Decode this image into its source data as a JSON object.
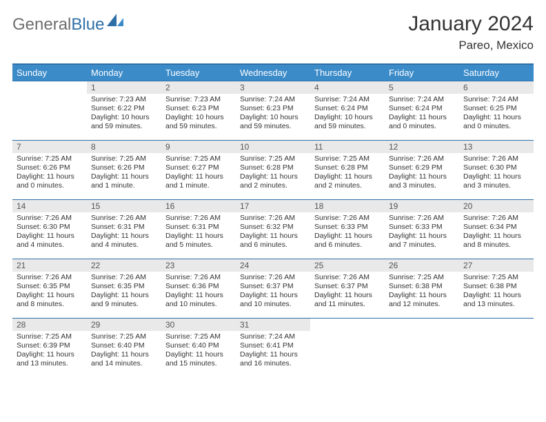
{
  "logo": {
    "general": "General",
    "blue": "Blue"
  },
  "header": {
    "month_title": "January 2024",
    "location": "Pareo, Mexico"
  },
  "colors": {
    "accent": "#3b8bc9",
    "accent_dark": "#2f6fa7",
    "daynum_bg": "#e9e9e9",
    "text": "#333333",
    "logo_grey": "#6e6e6e"
  },
  "weekdays": [
    "Sunday",
    "Monday",
    "Tuesday",
    "Wednesday",
    "Thursday",
    "Friday",
    "Saturday"
  ],
  "weeks": [
    [
      null,
      {
        "n": "1",
        "sunrise": "Sunrise: 7:23 AM",
        "sunset": "Sunset: 6:22 PM",
        "daylight": "Daylight: 10 hours and 59 minutes."
      },
      {
        "n": "2",
        "sunrise": "Sunrise: 7:23 AM",
        "sunset": "Sunset: 6:23 PM",
        "daylight": "Daylight: 10 hours and 59 minutes."
      },
      {
        "n": "3",
        "sunrise": "Sunrise: 7:24 AM",
        "sunset": "Sunset: 6:23 PM",
        "daylight": "Daylight: 10 hours and 59 minutes."
      },
      {
        "n": "4",
        "sunrise": "Sunrise: 7:24 AM",
        "sunset": "Sunset: 6:24 PM",
        "daylight": "Daylight: 10 hours and 59 minutes."
      },
      {
        "n": "5",
        "sunrise": "Sunrise: 7:24 AM",
        "sunset": "Sunset: 6:24 PM",
        "daylight": "Daylight: 11 hours and 0 minutes."
      },
      {
        "n": "6",
        "sunrise": "Sunrise: 7:24 AM",
        "sunset": "Sunset: 6:25 PM",
        "daylight": "Daylight: 11 hours and 0 minutes."
      }
    ],
    [
      {
        "n": "7",
        "sunrise": "Sunrise: 7:25 AM",
        "sunset": "Sunset: 6:26 PM",
        "daylight": "Daylight: 11 hours and 0 minutes."
      },
      {
        "n": "8",
        "sunrise": "Sunrise: 7:25 AM",
        "sunset": "Sunset: 6:26 PM",
        "daylight": "Daylight: 11 hours and 1 minute."
      },
      {
        "n": "9",
        "sunrise": "Sunrise: 7:25 AM",
        "sunset": "Sunset: 6:27 PM",
        "daylight": "Daylight: 11 hours and 1 minute."
      },
      {
        "n": "10",
        "sunrise": "Sunrise: 7:25 AM",
        "sunset": "Sunset: 6:28 PM",
        "daylight": "Daylight: 11 hours and 2 minutes."
      },
      {
        "n": "11",
        "sunrise": "Sunrise: 7:25 AM",
        "sunset": "Sunset: 6:28 PM",
        "daylight": "Daylight: 11 hours and 2 minutes."
      },
      {
        "n": "12",
        "sunrise": "Sunrise: 7:26 AM",
        "sunset": "Sunset: 6:29 PM",
        "daylight": "Daylight: 11 hours and 3 minutes."
      },
      {
        "n": "13",
        "sunrise": "Sunrise: 7:26 AM",
        "sunset": "Sunset: 6:30 PM",
        "daylight": "Daylight: 11 hours and 3 minutes."
      }
    ],
    [
      {
        "n": "14",
        "sunrise": "Sunrise: 7:26 AM",
        "sunset": "Sunset: 6:30 PM",
        "daylight": "Daylight: 11 hours and 4 minutes."
      },
      {
        "n": "15",
        "sunrise": "Sunrise: 7:26 AM",
        "sunset": "Sunset: 6:31 PM",
        "daylight": "Daylight: 11 hours and 4 minutes."
      },
      {
        "n": "16",
        "sunrise": "Sunrise: 7:26 AM",
        "sunset": "Sunset: 6:31 PM",
        "daylight": "Daylight: 11 hours and 5 minutes."
      },
      {
        "n": "17",
        "sunrise": "Sunrise: 7:26 AM",
        "sunset": "Sunset: 6:32 PM",
        "daylight": "Daylight: 11 hours and 6 minutes."
      },
      {
        "n": "18",
        "sunrise": "Sunrise: 7:26 AM",
        "sunset": "Sunset: 6:33 PM",
        "daylight": "Daylight: 11 hours and 6 minutes."
      },
      {
        "n": "19",
        "sunrise": "Sunrise: 7:26 AM",
        "sunset": "Sunset: 6:33 PM",
        "daylight": "Daylight: 11 hours and 7 minutes."
      },
      {
        "n": "20",
        "sunrise": "Sunrise: 7:26 AM",
        "sunset": "Sunset: 6:34 PM",
        "daylight": "Daylight: 11 hours and 8 minutes."
      }
    ],
    [
      {
        "n": "21",
        "sunrise": "Sunrise: 7:26 AM",
        "sunset": "Sunset: 6:35 PM",
        "daylight": "Daylight: 11 hours and 8 minutes."
      },
      {
        "n": "22",
        "sunrise": "Sunrise: 7:26 AM",
        "sunset": "Sunset: 6:35 PM",
        "daylight": "Daylight: 11 hours and 9 minutes."
      },
      {
        "n": "23",
        "sunrise": "Sunrise: 7:26 AM",
        "sunset": "Sunset: 6:36 PM",
        "daylight": "Daylight: 11 hours and 10 minutes."
      },
      {
        "n": "24",
        "sunrise": "Sunrise: 7:26 AM",
        "sunset": "Sunset: 6:37 PM",
        "daylight": "Daylight: 11 hours and 10 minutes."
      },
      {
        "n": "25",
        "sunrise": "Sunrise: 7:26 AM",
        "sunset": "Sunset: 6:37 PM",
        "daylight": "Daylight: 11 hours and 11 minutes."
      },
      {
        "n": "26",
        "sunrise": "Sunrise: 7:25 AM",
        "sunset": "Sunset: 6:38 PM",
        "daylight": "Daylight: 11 hours and 12 minutes."
      },
      {
        "n": "27",
        "sunrise": "Sunrise: 7:25 AM",
        "sunset": "Sunset: 6:38 PM",
        "daylight": "Daylight: 11 hours and 13 minutes."
      }
    ],
    [
      {
        "n": "28",
        "sunrise": "Sunrise: 7:25 AM",
        "sunset": "Sunset: 6:39 PM",
        "daylight": "Daylight: 11 hours and 13 minutes."
      },
      {
        "n": "29",
        "sunrise": "Sunrise: 7:25 AM",
        "sunset": "Sunset: 6:40 PM",
        "daylight": "Daylight: 11 hours and 14 minutes."
      },
      {
        "n": "30",
        "sunrise": "Sunrise: 7:25 AM",
        "sunset": "Sunset: 6:40 PM",
        "daylight": "Daylight: 11 hours and 15 minutes."
      },
      {
        "n": "31",
        "sunrise": "Sunrise: 7:24 AM",
        "sunset": "Sunset: 6:41 PM",
        "daylight": "Daylight: 11 hours and 16 minutes."
      },
      null,
      null,
      null
    ]
  ]
}
